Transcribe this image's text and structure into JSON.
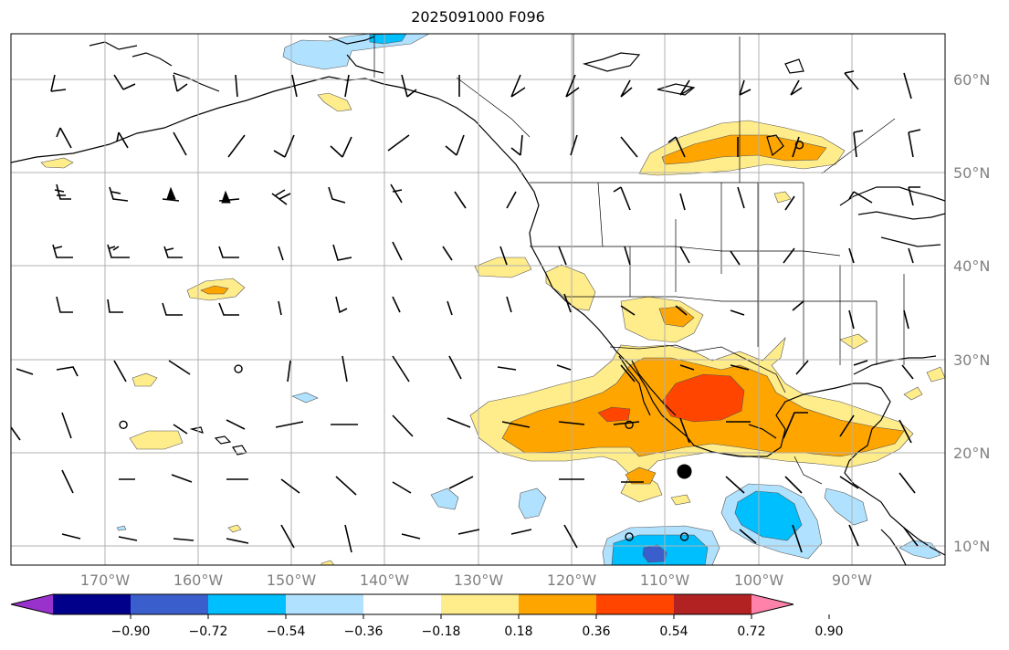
{
  "title": "2025091000 F096",
  "lat_labels": [
    "60°N",
    "50°N",
    "40°N",
    "30°N",
    "20°N",
    "10°N"
  ],
  "lon_labels": [
    "170°W",
    "160°W",
    "150°W",
    "140°W",
    "130°W",
    "120°W",
    "110°W",
    "100°W",
    "90°W"
  ],
  "colorbar": {
    "ticks": [
      "−0.90",
      "−0.72",
      "−0.54",
      "−0.36",
      "−0.18",
      "0.18",
      "0.36",
      "0.54",
      "0.72",
      "0.90"
    ],
    "colors": [
      "#9932cc",
      "#00008b",
      "#3a5fcd",
      "#00bfff",
      "#b0e2ff",
      "#ffffff",
      "#ffec8b",
      "#ffa500",
      "#ff4500",
      "#b22222",
      "#ff82ab"
    ]
  },
  "markers": [
    {
      "name": "large-dot",
      "lon": -107.9,
      "lat": 18.0
    },
    {
      "name": "circle",
      "lon": -155.6,
      "lat": 29.0
    },
    {
      "name": "circle",
      "lon": -167.9,
      "lat": 23.0
    },
    {
      "name": "circle",
      "lon": -113.8,
      "lat": 23.0
    },
    {
      "name": "circle",
      "lon": -113.8,
      "lat": 11.0
    },
    {
      "name": "circle",
      "lon": -107.9,
      "lat": 11.0
    },
    {
      "name": "circle",
      "lon": -95.6,
      "lat": 53.0
    }
  ]
}
